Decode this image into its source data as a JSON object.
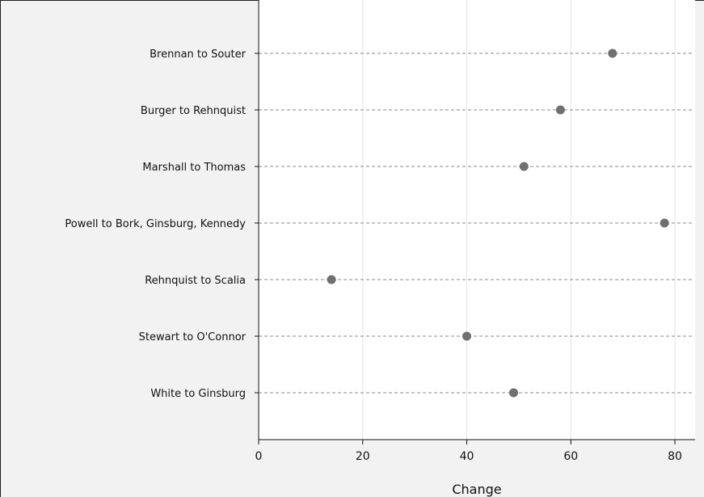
{
  "chart_data": {
    "type": "scatter",
    "title": "",
    "xlabel": "Change",
    "ylabel": "",
    "xlim": [
      0,
      84
    ],
    "xticks": [
      0,
      20,
      40,
      60,
      80
    ],
    "grid": "vertical",
    "categories": [
      "Brennan to Souter",
      "Burger to Rehnquist",
      "Marshall to Thomas",
      "Powell to Bork, Ginsburg, Kennedy",
      "Rehnquist to Scalia",
      "Stewart to O'Connor",
      "White to Ginsburg"
    ],
    "values": [
      68,
      58,
      51,
      78,
      14,
      40,
      49
    ],
    "point_color": "#707070"
  }
}
